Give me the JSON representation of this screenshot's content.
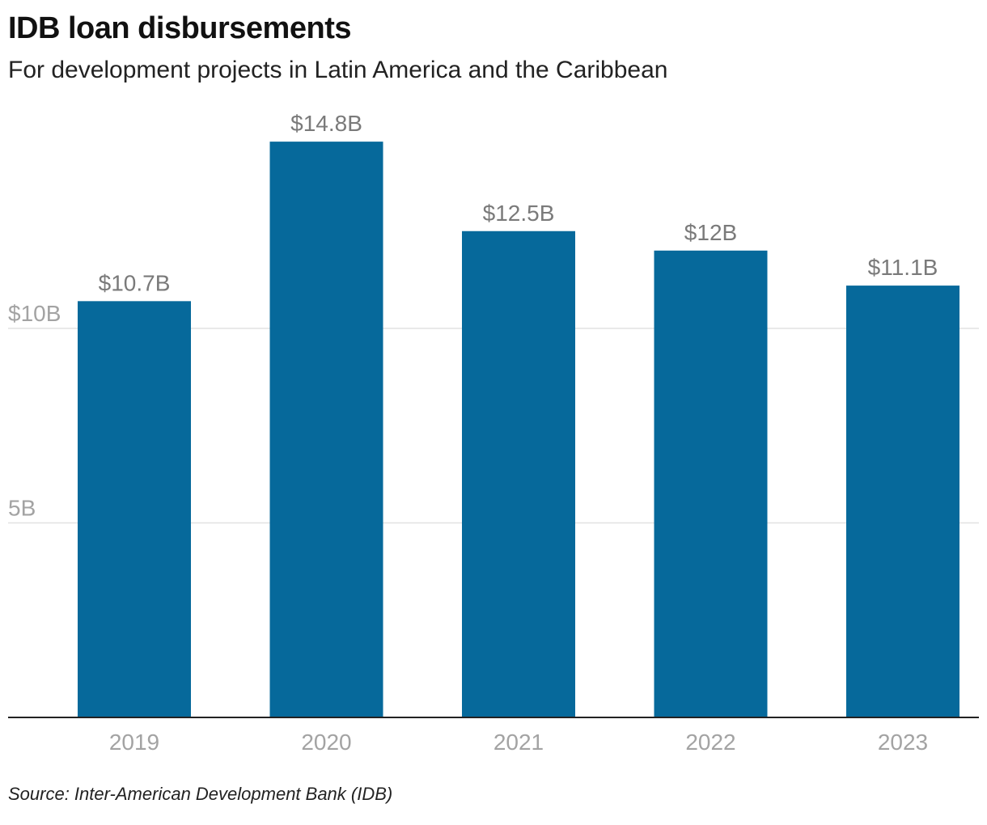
{
  "header": {
    "title": "IDB loan disbursements",
    "subtitle": "For development projects in Latin America and the Caribbean"
  },
  "footer": {
    "source": "Source: Inter-American Development Bank (IDB)"
  },
  "colors": {
    "bar": "#06699b",
    "gridline": "#e2e2e2",
    "baseline": "#222222",
    "tick_label": "#a3a3a3",
    "value_label": "#7a7a7a"
  },
  "chart_data": {
    "type": "bar",
    "title": "IDB loan disbursements",
    "subtitle": "For development projects in Latin America and the Caribbean",
    "categories": [
      "2019",
      "2020",
      "2021",
      "2022",
      "2023"
    ],
    "values": [
      10.7,
      14.8,
      12.5,
      12.0,
      11.1
    ],
    "value_labels": [
      "$10.7B",
      "$14.8B",
      "$12.5B",
      "$12B",
      "$11.1B"
    ],
    "xlabel": "",
    "ylabel": "",
    "ylim": [
      0,
      15.5
    ],
    "yticks": [
      {
        "value": 5,
        "label": "5B"
      },
      {
        "value": 10,
        "label": "$10B"
      }
    ],
    "grid": true,
    "legend": "none"
  }
}
